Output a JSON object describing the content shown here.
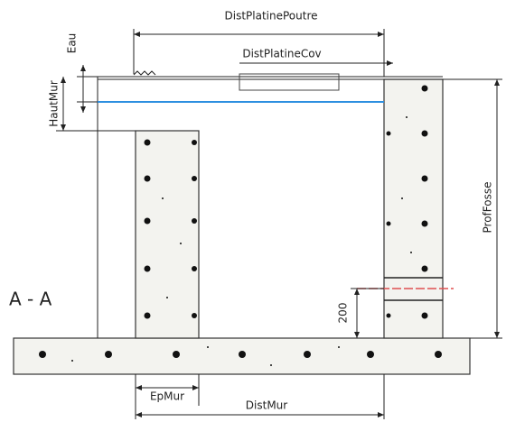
{
  "title": "A - A",
  "dimensions": {
    "dist_platine_poutre": "DistPlatinePoutre",
    "dist_platine_cov": "DistPlatineCov",
    "eau": "Eau",
    "haut_mur": "HautMur",
    "prof_fosse": "ProfFosse",
    "height_200": "200",
    "ep_mur": "EpMur",
    "dist_mur": "DistMur"
  }
}
